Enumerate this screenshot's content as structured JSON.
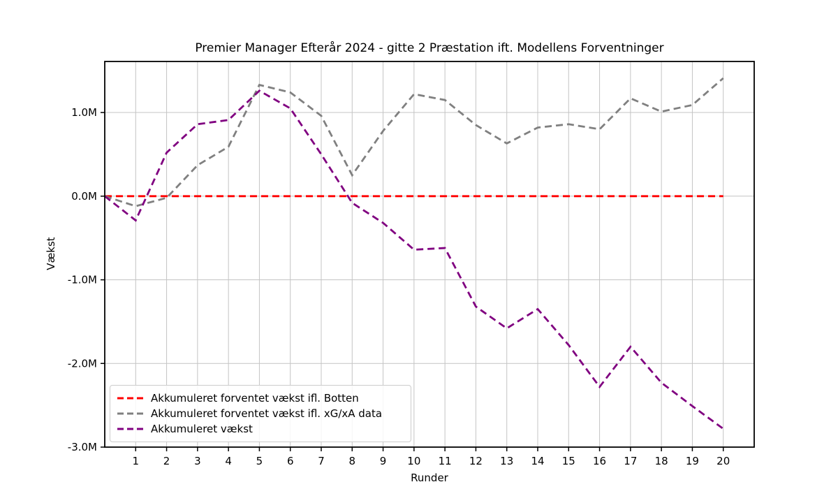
{
  "chart_data": {
    "type": "line",
    "title": "Premier Manager Efterår 2024 - gitte 2 Præstation ift. Modellens Forventninger",
    "xlabel": "Runder",
    "ylabel": "Vækst",
    "x": [
      0,
      1,
      2,
      3,
      4,
      5,
      6,
      7,
      8,
      9,
      10,
      11,
      12,
      13,
      14,
      15,
      16,
      17,
      18,
      19,
      20
    ],
    "series": [
      {
        "id": "botten",
        "name": "Akkumuleret forventet vækst ifl. Botten",
        "color": "#ff0000",
        "linestyle": "dashed",
        "values": [
          0,
          0,
          0,
          0,
          0,
          0,
          0,
          0,
          0,
          0,
          0,
          0,
          0,
          0,
          0,
          0,
          0,
          0,
          0,
          0,
          0
        ]
      },
      {
        "id": "xgxa",
        "name": "Akkumuleret forventet vækst ifl. xG/xA data",
        "color": "#808080",
        "linestyle": "dashed",
        "values": [
          0.0,
          -0.12,
          -0.02,
          0.37,
          0.59,
          1.33,
          1.24,
          0.96,
          0.25,
          0.78,
          1.22,
          1.15,
          0.85,
          0.63,
          0.82,
          0.86,
          0.8,
          1.17,
          1.01,
          1.09,
          1.41
        ]
      },
      {
        "id": "vaekst",
        "name": "Akkumuleret vækst",
        "color": "#800080",
        "linestyle": "dashed",
        "values": [
          0.0,
          -0.29,
          0.52,
          0.86,
          0.91,
          1.26,
          1.05,
          0.5,
          -0.08,
          -0.32,
          -0.64,
          -0.62,
          -1.32,
          -1.58,
          -1.35,
          -1.78,
          -2.28,
          -1.8,
          -2.23,
          -2.51,
          -2.78
        ]
      }
    ],
    "xticks": {
      "values": [
        1,
        2,
        3,
        4,
        5,
        6,
        7,
        8,
        9,
        10,
        11,
        12,
        13,
        14,
        15,
        16,
        17,
        18,
        19,
        20
      ],
      "labels": [
        "1",
        "2",
        "3",
        "4",
        "5",
        "6",
        "7",
        "8",
        "9",
        "10",
        "11",
        "12",
        "13",
        "14",
        "15",
        "16",
        "17",
        "18",
        "19",
        "20"
      ]
    },
    "yticks": {
      "values": [
        1.0,
        0.0,
        -1.0,
        -2.0,
        -3.0
      ],
      "labels": [
        "1.0M",
        "0.0M",
        "-1.0M",
        "-2.0M",
        "-3.0M"
      ]
    },
    "xlim": [
      0,
      21
    ],
    "ylim": [
      -3.0,
      1.61
    ],
    "grid": true,
    "legend_position": "lower left",
    "colors": {
      "grid": "#c4c4c4",
      "axis": "#000000",
      "background": "#ffffff",
      "zero_line": "#ff0000"
    }
  }
}
